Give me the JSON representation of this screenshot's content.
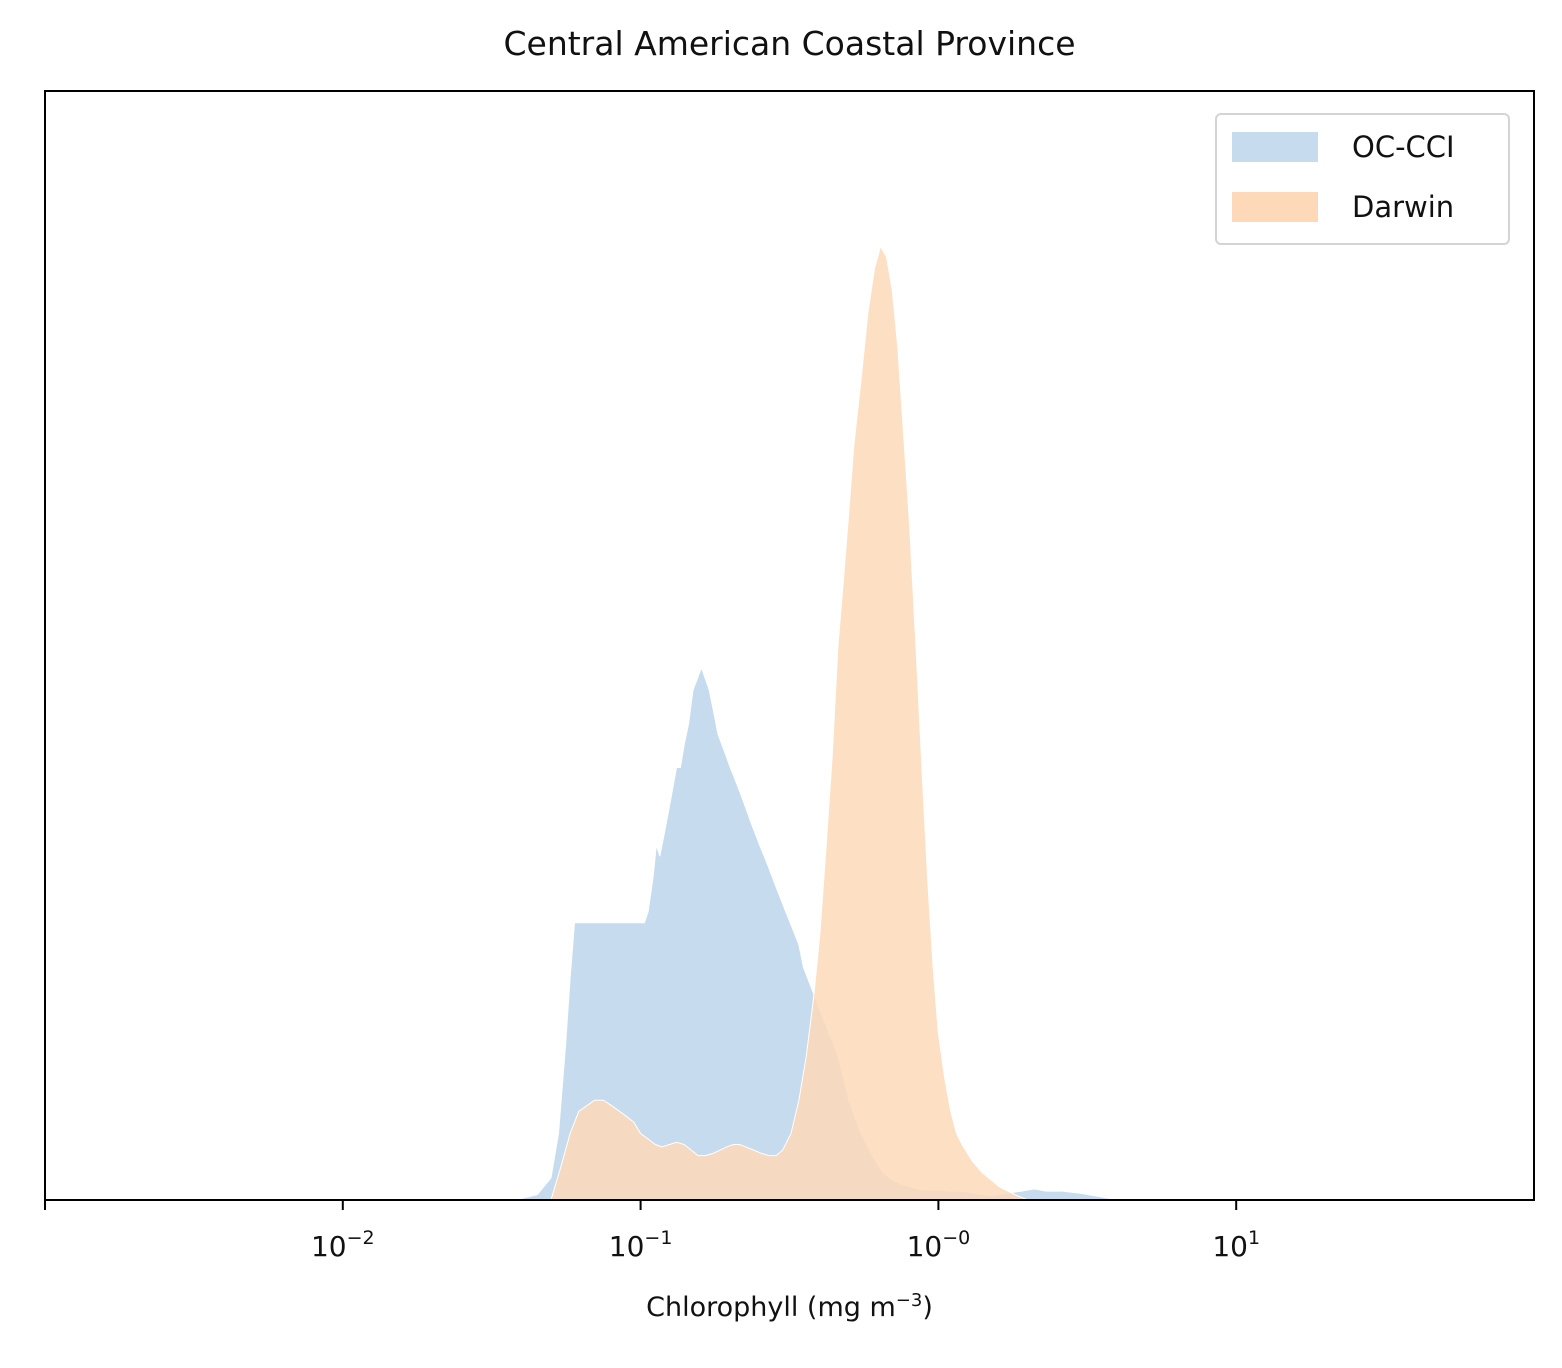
{
  "chart_data": {
    "type": "area",
    "title": "Central American Coastal Province",
    "xlabel": "Chlorophyll  (mg m",
    "xlabel_sup": "−3",
    "xlabel_end": ")",
    "ylabel": "",
    "xscale": "log",
    "xlim": [
      0.001,
      100
    ],
    "ylim": [
      0,
      1.0
    ],
    "grid": false,
    "legend_position": "top-right",
    "xticks": [
      {
        "value": 0.01,
        "base": "10",
        "exp": "−2"
      },
      {
        "value": 0.1,
        "base": "10",
        "exp": "−1"
      },
      {
        "value": 1,
        "base": "10",
        "exp": "−0"
      },
      {
        "value": 10,
        "base": "10",
        "exp": "1"
      }
    ],
    "series": [
      {
        "name": "OC-CCI",
        "color": "#c6dbed",
        "x": [
          0.038,
          0.045,
          0.05,
          0.053,
          0.056,
          0.058,
          0.06,
          0.062,
          0.064,
          0.066,
          0.068,
          0.07,
          0.072,
          0.075,
          0.078,
          0.08,
          0.082,
          0.085,
          0.088,
          0.09,
          0.093,
          0.096,
          0.1,
          0.103,
          0.106,
          0.11,
          0.113,
          0.116,
          0.12,
          0.124,
          0.128,
          0.132,
          0.136,
          0.14,
          0.145,
          0.15,
          0.155,
          0.16,
          0.165,
          0.17,
          0.176,
          0.182,
          0.188,
          0.194,
          0.2,
          0.207,
          0.214,
          0.221,
          0.228,
          0.235,
          0.243,
          0.251,
          0.26,
          0.269,
          0.278,
          0.287,
          0.297,
          0.307,
          0.318,
          0.329,
          0.34,
          0.352,
          0.364,
          0.376,
          0.389,
          0.402,
          0.416,
          0.43,
          0.445,
          0.46,
          0.48,
          0.5,
          0.55,
          0.6,
          0.65,
          0.7,
          0.75,
          0.8,
          0.85,
          0.9,
          0.95,
          1.0,
          1.1,
          1.2,
          1.3,
          1.5,
          1.7,
          1.9,
          2.1,
          2.3,
          2.6,
          3.0,
          3.5,
          4.0
        ],
        "y": [
          0,
          0.005,
          0.02,
          0.06,
          0.14,
          0.2,
          0.25,
          0.25,
          0.25,
          0.25,
          0.25,
          0.25,
          0.25,
          0.25,
          0.25,
          0.25,
          0.25,
          0.25,
          0.25,
          0.25,
          0.25,
          0.25,
          0.25,
          0.25,
          0.26,
          0.29,
          0.32,
          0.31,
          0.33,
          0.35,
          0.37,
          0.39,
          0.39,
          0.41,
          0.43,
          0.46,
          0.47,
          0.48,
          0.47,
          0.46,
          0.44,
          0.42,
          0.41,
          0.4,
          0.39,
          0.38,
          0.37,
          0.36,
          0.35,
          0.34,
          0.33,
          0.32,
          0.31,
          0.3,
          0.29,
          0.28,
          0.27,
          0.26,
          0.25,
          0.24,
          0.23,
          0.21,
          0.2,
          0.19,
          0.18,
          0.17,
          0.16,
          0.15,
          0.14,
          0.13,
          0.11,
          0.09,
          0.06,
          0.04,
          0.025,
          0.018,
          0.014,
          0.012,
          0.01,
          0.009,
          0.009,
          0.009,
          0.008,
          0.008,
          0.006,
          0.004,
          0.006,
          0.008,
          0.01,
          0.008,
          0.008,
          0.006,
          0.003,
          0
        ]
      },
      {
        "name": "Darwin",
        "color": "#fdd9b9",
        "x": [
          0.05,
          0.054,
          0.058,
          0.062,
          0.066,
          0.07,
          0.075,
          0.08,
          0.085,
          0.09,
          0.095,
          0.1,
          0.106,
          0.112,
          0.118,
          0.125,
          0.132,
          0.14,
          0.148,
          0.156,
          0.165,
          0.175,
          0.185,
          0.195,
          0.205,
          0.215,
          0.225,
          0.24,
          0.255,
          0.27,
          0.285,
          0.3,
          0.32,
          0.34,
          0.36,
          0.38,
          0.4,
          0.42,
          0.44,
          0.46,
          0.48,
          0.5,
          0.52,
          0.55,
          0.58,
          0.61,
          0.64,
          0.67,
          0.7,
          0.73,
          0.76,
          0.8,
          0.84,
          0.88,
          0.92,
          0.96,
          1.0,
          1.05,
          1.1,
          1.15,
          1.2,
          1.3,
          1.4,
          1.6,
          1.8,
          2.0
        ],
        "y": [
          0,
          0.03,
          0.06,
          0.08,
          0.085,
          0.09,
          0.09,
          0.085,
          0.08,
          0.075,
          0.07,
          0.06,
          0.055,
          0.05,
          0.048,
          0.05,
          0.052,
          0.05,
          0.045,
          0.04,
          0.04,
          0.042,
          0.045,
          0.048,
          0.05,
          0.05,
          0.048,
          0.045,
          0.042,
          0.04,
          0.04,
          0.045,
          0.06,
          0.09,
          0.13,
          0.18,
          0.24,
          0.32,
          0.4,
          0.5,
          0.56,
          0.62,
          0.68,
          0.74,
          0.8,
          0.84,
          0.86,
          0.85,
          0.82,
          0.77,
          0.7,
          0.61,
          0.5,
          0.39,
          0.29,
          0.21,
          0.15,
          0.11,
          0.08,
          0.06,
          0.05,
          0.035,
          0.025,
          0.012,
          0.005,
          0
        ]
      }
    ]
  }
}
